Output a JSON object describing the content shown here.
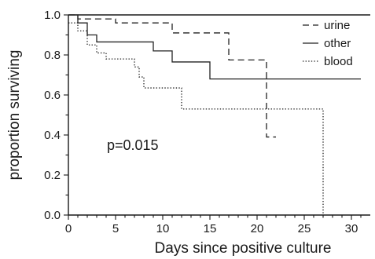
{
  "chart_data": {
    "type": "line",
    "subtype": "kaplan-meier step curves",
    "xlabel": "Days since positive culture",
    "ylabel": "proportion surviving",
    "xlim": [
      0,
      32
    ],
    "ylim": [
      0,
      1.0
    ],
    "x_ticks": [
      0,
      5,
      10,
      15,
      20,
      25,
      30
    ],
    "y_ticks": [
      0.0,
      0.2,
      0.4,
      0.6,
      0.8,
      1.0
    ],
    "y_tick_labels": [
      "0.0",
      "0.2",
      "0.4",
      "0.6",
      "0.8",
      "1.0"
    ],
    "grid": false,
    "legend_position": "top-right",
    "annotation": "p=0.015",
    "series": [
      {
        "name": "urine",
        "line_style": "dashed",
        "color": "#222222",
        "points": [
          [
            0,
            1.0
          ],
          [
            1,
            1.0
          ],
          [
            1,
            0.98
          ],
          [
            5,
            0.98
          ],
          [
            5,
            0.96
          ],
          [
            11,
            0.96
          ],
          [
            11,
            0.91
          ],
          [
            17,
            0.91
          ],
          [
            17,
            0.775
          ],
          [
            21,
            0.775
          ],
          [
            21,
            0.39
          ],
          [
            22,
            0.39
          ]
        ]
      },
      {
        "name": "other",
        "line_style": "solid",
        "color": "#222222",
        "points": [
          [
            0,
            1.0
          ],
          [
            1,
            1.0
          ],
          [
            1,
            0.96
          ],
          [
            2,
            0.96
          ],
          [
            2,
            0.9
          ],
          [
            3,
            0.9
          ],
          [
            3,
            0.865
          ],
          [
            9,
            0.865
          ],
          [
            9,
            0.82
          ],
          [
            11,
            0.82
          ],
          [
            11,
            0.765
          ],
          [
            15,
            0.765
          ],
          [
            15,
            0.68
          ],
          [
            31,
            0.68
          ]
        ]
      },
      {
        "name": "blood",
        "line_style": "dotted",
        "color": "#222222",
        "points": [
          [
            0,
            0.96
          ],
          [
            1,
            0.96
          ],
          [
            1,
            0.92
          ],
          [
            2,
            0.92
          ],
          [
            2,
            0.85
          ],
          [
            3,
            0.85
          ],
          [
            3,
            0.81
          ],
          [
            4,
            0.81
          ],
          [
            4,
            0.78
          ],
          [
            7,
            0.78
          ],
          [
            7,
            0.74
          ],
          [
            7.5,
            0.74
          ],
          [
            7.5,
            0.69
          ],
          [
            8,
            0.69
          ],
          [
            8,
            0.635
          ],
          [
            12,
            0.635
          ],
          [
            12,
            0.53
          ],
          [
            27,
            0.53
          ],
          [
            27,
            0.0
          ]
        ]
      }
    ]
  },
  "colors": {
    "axis": "#1a1a1a",
    "background": "#ffffff"
  }
}
